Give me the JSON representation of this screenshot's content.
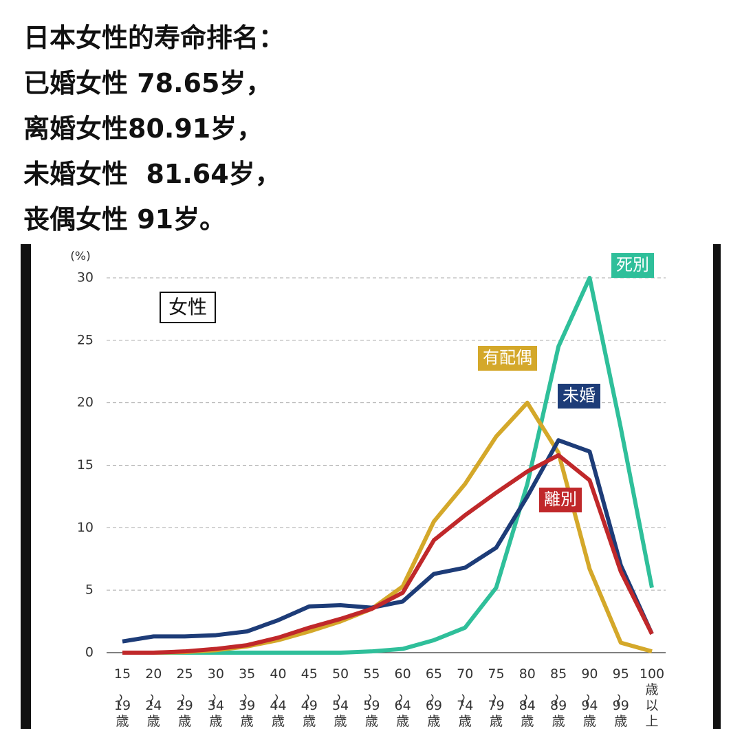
{
  "header": {
    "lines": [
      "日本女性的寿命排名：",
      "已婚女性 78.65岁，",
      "离婚女性80.91岁，",
      "未婚女性  81.64岁，",
      "丧偶女性 91岁。"
    ]
  },
  "chart_data": {
    "type": "line",
    "y_label": "(%)",
    "annotation": "女性",
    "categories": [
      "15～19歳",
      "20～24歳",
      "25～29歳",
      "30～34歳",
      "35～39歳",
      "40～44歳",
      "45～49歳",
      "50～54歳",
      "55～59歳",
      "60～64歳",
      "65～69歳",
      "70～74歳",
      "75～79歳",
      "80～84歳",
      "85～89歳",
      "90～94歳",
      "95～99歳",
      "100歳以上"
    ],
    "series": [
      {
        "name": "死別",
        "color": "#2fbf9a",
        "values": [
          0,
          0,
          0,
          0,
          0,
          0,
          0,
          0,
          0.1,
          0.3,
          1,
          2,
          5.2,
          13.5,
          24.5,
          30,
          18,
          5.2
        ]
      },
      {
        "name": "有配偶",
        "color": "#d4a82a",
        "values": [
          0,
          0,
          0.05,
          0.2,
          0.5,
          1,
          1.7,
          2.5,
          3.5,
          5.3,
          10.5,
          13.5,
          17.3,
          20,
          16,
          6.7,
          0.8,
          0.1
        ]
      },
      {
        "name": "未婚",
        "color": "#1d3c78",
        "values": [
          0.9,
          1.3,
          1.3,
          1.4,
          1.7,
          2.6,
          3.7,
          3.8,
          3.6,
          4.1,
          6.3,
          6.8,
          8.4,
          12.5,
          17,
          16.1,
          7,
          1.5
        ]
      },
      {
        "name": "離別",
        "color": "#c0282a",
        "values": [
          0,
          0,
          0.1,
          0.3,
          0.6,
          1.2,
          2,
          2.7,
          3.5,
          4.8,
          9,
          11,
          12.8,
          14.5,
          15.8,
          13.8,
          6.5,
          1.5
        ]
      }
    ],
    "ylim": [
      0,
      30
    ],
    "yticks": [
      0,
      5,
      10,
      15,
      20,
      25,
      30
    ],
    "grid": true
  }
}
